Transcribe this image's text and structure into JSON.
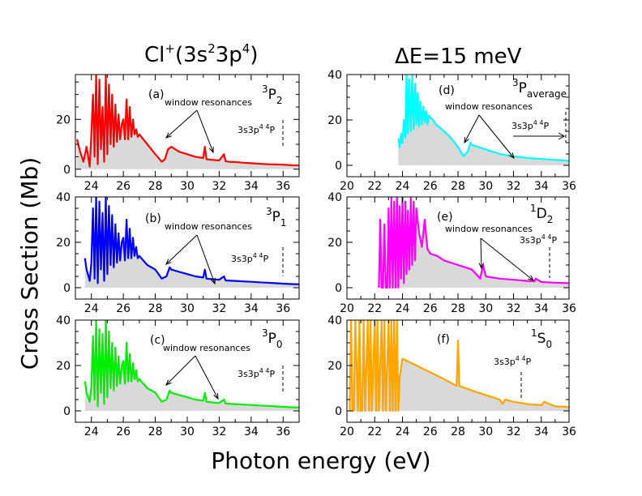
{
  "figure": {
    "title_left": {
      "main": "Cl",
      "sup1": "+",
      "open": "(3s",
      "sup2": "2",
      "mid": "3p",
      "sup3": "4",
      "close": ")"
    },
    "title_right": {
      "symbol": "Δ",
      "text": "E=15 meV"
    },
    "xlabel": "Photon energy (eV)",
    "ylabel": "Cross Section (Mb)",
    "colors": {
      "fill": "#d9d9d9"
    }
  },
  "chart_data": [
    {
      "id": "a",
      "type": "line",
      "panel_label": "(a)",
      "state": {
        "sup": "3",
        "letter": "P",
        "sub": "2"
      },
      "color": "#ff0000",
      "xlim": [
        23,
        37
      ],
      "ylim": [
        -3,
        38
      ],
      "xticks": [
        24,
        26,
        28,
        30,
        32,
        34,
        36
      ],
      "yticks": [
        0,
        20
      ],
      "annotation": "window resonances",
      "threshold": {
        "label": "3s3p",
        "sup": "4",
        "mid": " ",
        "sup2": "4",
        "end": "P",
        "x": 35.5
      },
      "series": [
        {
          "name": "3P2",
          "x": [
            23.1,
            23.3,
            23.5,
            23.7,
            23.9,
            24.0,
            24.1,
            24.2,
            24.3,
            24.4,
            24.5,
            24.6,
            24.7,
            24.8,
            24.9,
            25.0,
            25.1,
            25.2,
            25.3,
            25.4,
            25.5,
            25.6,
            25.7,
            25.8,
            25.9,
            26.0,
            26.1,
            26.2,
            26.3,
            26.4,
            26.5,
            26.6,
            26.7,
            26.8,
            26.9,
            27.0,
            27.5,
            28.0,
            28.4,
            28.6,
            28.8,
            29.0,
            29.5,
            30.0,
            30.5,
            31.0,
            31.1,
            31.2,
            31.5,
            32.0,
            32.3,
            32.4,
            32.6,
            33.0,
            33.5,
            34.0,
            34.5,
            35.0,
            35.5,
            36.0,
            36.5,
            37.0
          ],
          "y": [
            12,
            7,
            3,
            9,
            1,
            14,
            30,
            5,
            38,
            2,
            36,
            8,
            25,
            3,
            38,
            6,
            34,
            10,
            30,
            9,
            26,
            11,
            22,
            12,
            18,
            20,
            12,
            28,
            12,
            25,
            13,
            20,
            14,
            16,
            13,
            14,
            10,
            6,
            3,
            4,
            8,
            9,
            7,
            6,
            5,
            4.5,
            9,
            4,
            3.8,
            3.5,
            6,
            3.2,
            3,
            2.9,
            2.6,
            2.4,
            2.2,
            2.0,
            1.9,
            1.8,
            1.6,
            1.5
          ]
        }
      ]
    },
    {
      "id": "b",
      "type": "line",
      "panel_label": "(b)",
      "state": {
        "sup": "3",
        "letter": "P",
        "sub": "1"
      },
      "color": "#0000ff",
      "xlim": [
        23,
        37
      ],
      "ylim": [
        -5,
        40
      ],
      "xticks": [
        24,
        26,
        28,
        30,
        32,
        34,
        36
      ],
      "yticks": [
        0,
        20,
        40
      ],
      "annotation": "window resonances",
      "threshold": {
        "label": "3s3p",
        "sup": "4",
        "mid": " ",
        "sup2": "4",
        "end": "P",
        "x": 35.5
      },
      "series": [
        {
          "name": "3P1",
          "x": [
            23.6,
            23.7,
            23.9,
            24.0,
            24.1,
            24.2,
            24.3,
            24.4,
            24.5,
            24.6,
            24.7,
            24.8,
            24.9,
            25.0,
            25.1,
            25.2,
            25.3,
            25.4,
            25.5,
            25.6,
            25.7,
            25.8,
            25.9,
            26.0,
            26.1,
            26.2,
            26.3,
            26.4,
            26.5,
            26.6,
            26.7,
            26.8,
            26.9,
            27.0,
            27.5,
            28.0,
            28.4,
            28.7,
            28.9,
            29.0,
            29.5,
            30.0,
            30.5,
            31.0,
            31.1,
            31.2,
            31.5,
            32.0,
            32.3,
            32.4,
            33.0,
            33.5,
            34.0,
            34.5,
            35.0,
            35.5,
            36.0,
            36.5,
            37.0
          ],
          "y": [
            13,
            8,
            3,
            11,
            35,
            4,
            40,
            2,
            38,
            8,
            33,
            3,
            40,
            6,
            36,
            10,
            32,
            9,
            28,
            11,
            24,
            12,
            20,
            22,
            12,
            30,
            13,
            26,
            13,
            22,
            14,
            18,
            13,
            14,
            10,
            8,
            4,
            5,
            9,
            8,
            7,
            6,
            5,
            4.5,
            8,
            4,
            3.8,
            3.5,
            5,
            3.2,
            3,
            2.8,
            2.6,
            2.4,
            2.2,
            2.0,
            1.8,
            1.6,
            1.5
          ]
        }
      ]
    },
    {
      "id": "c",
      "type": "line",
      "panel_label": "(c)",
      "state": {
        "sup": "3",
        "letter": "P",
        "sub": "0"
      },
      "color": "#00ee00",
      "xlim": [
        23,
        37
      ],
      "ylim": [
        -5,
        40
      ],
      "xticks": [
        24,
        26,
        28,
        30,
        32,
        34,
        36
      ],
      "yticks": [
        0,
        20,
        40
      ],
      "annotation": "window resonances",
      "threshold": {
        "label": "3s3p",
        "sup": "4",
        "mid": " ",
        "sup2": "4",
        "end": "P",
        "x": 35.5
      },
      "series": [
        {
          "name": "3P0",
          "x": [
            23.6,
            23.7,
            23.9,
            24.0,
            24.1,
            24.2,
            24.3,
            24.4,
            24.5,
            24.6,
            24.7,
            24.8,
            24.9,
            25.0,
            25.1,
            25.2,
            25.3,
            25.4,
            25.5,
            25.6,
            25.7,
            25.8,
            25.9,
            26.0,
            26.1,
            26.2,
            26.3,
            26.4,
            26.5,
            26.6,
            26.7,
            26.8,
            26.9,
            27.0,
            27.5,
            28.0,
            28.4,
            28.7,
            28.9,
            29.0,
            29.5,
            30.0,
            30.5,
            31.0,
            31.1,
            31.2,
            31.5,
            32.0,
            32.3,
            32.4,
            33.0,
            33.5,
            34.0,
            34.5,
            35.0,
            35.5,
            36.0,
            36.5,
            37.0
          ],
          "y": [
            13,
            8,
            4,
            11,
            33,
            5,
            40,
            2,
            36,
            8,
            34,
            3,
            40,
            6,
            35,
            10,
            30,
            9,
            28,
            11,
            24,
            12,
            20,
            22,
            12,
            30,
            13,
            25,
            13,
            21,
            14,
            18,
            13,
            14,
            10,
            8,
            4,
            5,
            9,
            8,
            7,
            6,
            5,
            4.5,
            8,
            4,
            3.8,
            3.5,
            5,
            3.2,
            3,
            2.8,
            2.6,
            2.4,
            2.2,
            2.0,
            1.8,
            1.6,
            1.5
          ]
        }
      ]
    },
    {
      "id": "d",
      "type": "line",
      "panel_label": "(d)",
      "state": {
        "sup": "3",
        "letter": "P",
        "sub": "average"
      },
      "color": "#00ffff",
      "xlim": [
        20,
        36
      ],
      "ylim": [
        -5,
        40
      ],
      "xticks": [
        20,
        22,
        24,
        26,
        28,
        30,
        32,
        34,
        36
      ],
      "yticks": [
        0,
        20,
        40
      ],
      "annotation": "window resonances",
      "threshold": {
        "label": "3s3p",
        "sup": "4",
        "mid": " ",
        "sup2": "4",
        "end": "P",
        "x": 36
      },
      "series": [
        {
          "name": "3Paverage",
          "x": [
            23.7,
            23.8,
            23.9,
            24.0,
            24.1,
            24.2,
            24.3,
            24.4,
            24.5,
            24.6,
            24.7,
            24.8,
            24.9,
            25.0,
            25.1,
            25.2,
            25.3,
            25.4,
            25.5,
            25.6,
            25.7,
            25.8,
            25.9,
            26.0,
            26.2,
            26.4,
            26.6,
            26.8,
            27.0,
            27.5,
            28.0,
            28.4,
            28.7,
            28.9,
            29.0,
            29.5,
            30.0,
            30.5,
            31.0,
            31.5,
            32.0,
            32.5,
            33.0,
            33.5,
            34.0,
            34.5,
            35.0,
            35.5,
            36.0
          ],
          "y": [
            12,
            8,
            14,
            10,
            20,
            12,
            40,
            14,
            38,
            15,
            40,
            16,
            36,
            18,
            32,
            17,
            28,
            18,
            26,
            19,
            24,
            18,
            22,
            21,
            20,
            18,
            17,
            16,
            15,
            12,
            8,
            4,
            6,
            10,
            9,
            8,
            7,
            6,
            5,
            4.5,
            4,
            3.6,
            3.2,
            3,
            2.8,
            2.6,
            2.4,
            2.2,
            2.0
          ]
        }
      ]
    },
    {
      "id": "e",
      "type": "line",
      "panel_label": "(e)",
      "state": {
        "sup": "1",
        "letter": "D",
        "sub": "2"
      },
      "color": "#ff00ff",
      "xlim": [
        20,
        36
      ],
      "ylim": [
        -5,
        40
      ],
      "xticks": [
        20,
        22,
        24,
        26,
        28,
        30,
        32,
        34,
        36
      ],
      "yticks": [
        0,
        20,
        40
      ],
      "annotation": "window resonances",
      "threshold": {
        "label": "3s3p",
        "sup": "4",
        "mid": " ",
        "sup2": "4",
        "end": "P",
        "x": 34.8
      },
      "series": [
        {
          "name": "1D2",
          "x": [
            22.3,
            22.4,
            22.5,
            22.6,
            22.7,
            22.8,
            22.9,
            23.0,
            23.1,
            23.2,
            23.3,
            23.4,
            23.5,
            23.6,
            23.7,
            23.8,
            23.9,
            24.0,
            24.1,
            24.2,
            24.3,
            24.4,
            24.5,
            24.6,
            24.7,
            24.8,
            24.9,
            25.0,
            25.2,
            25.4,
            25.6,
            25.8,
            26.0,
            26.5,
            27.0,
            28.0,
            29.0,
            29.6,
            29.8,
            30.0,
            30.5,
            31.0,
            32.0,
            33.0,
            33.5,
            33.6,
            34.0,
            35.0,
            36.0
          ],
          "y": [
            0,
            30,
            0,
            0,
            28,
            0,
            0,
            35,
            0,
            40,
            0,
            38,
            0,
            40,
            0,
            36,
            4,
            40,
            2,
            38,
            6,
            34,
            8,
            40,
            10,
            38,
            12,
            35,
            24,
            18,
            30,
            17,
            15,
            14,
            12,
            10,
            8,
            4,
            10,
            5,
            4.5,
            4,
            3.5,
            3,
            2.8,
            4,
            2.5,
            2.2,
            2.0
          ]
        }
      ]
    },
    {
      "id": "f",
      "type": "line",
      "panel_label": "(f)",
      "state": {
        "sup": "1",
        "letter": "S",
        "sub": "0"
      },
      "color": "#ffa500",
      "xlim": [
        20,
        36
      ],
      "ylim": [
        -5,
        40
      ],
      "xticks": [
        20,
        22,
        24,
        26,
        28,
        30,
        32,
        34,
        36
      ],
      "yticks": [
        0,
        20,
        40
      ],
      "annotation": "",
      "threshold": {
        "label": "3s3p",
        "sup": "4",
        "mid": " ",
        "sup2": "4",
        "end": "P",
        "x": 32.7
      },
      "series": [
        {
          "name": "1S0",
          "x": [
            20.2,
            20.3,
            20.4,
            20.5,
            20.6,
            20.8,
            20.9,
            21.0,
            21.1,
            21.2,
            21.3,
            21.5,
            21.6,
            21.7,
            21.8,
            22.0,
            22.1,
            22.2,
            22.3,
            22.5,
            22.6,
            22.7,
            22.8,
            23.0,
            23.1,
            23.2,
            23.3,
            23.4,
            23.5,
            23.6,
            23.7,
            23.8,
            24.0,
            25.0,
            26.0,
            27.0,
            27.9,
            28.0,
            28.1,
            29.0,
            30.0,
            31.0,
            31.2,
            31.4,
            32.0,
            33.0,
            34.0,
            34.2,
            35.0,
            36.0
          ],
          "y": [
            0,
            40,
            0,
            0,
            40,
            0,
            40,
            0,
            0,
            40,
            0,
            40,
            0,
            40,
            0,
            40,
            0,
            40,
            0,
            40,
            0,
            40,
            0,
            40,
            0,
            40,
            0,
            40,
            0,
            40,
            0,
            15,
            23,
            20,
            17,
            14,
            11,
            31,
            11,
            9,
            7,
            5,
            3,
            5,
            4,
            3,
            2.5,
            4,
            2,
            1.8
          ]
        }
      ]
    }
  ]
}
